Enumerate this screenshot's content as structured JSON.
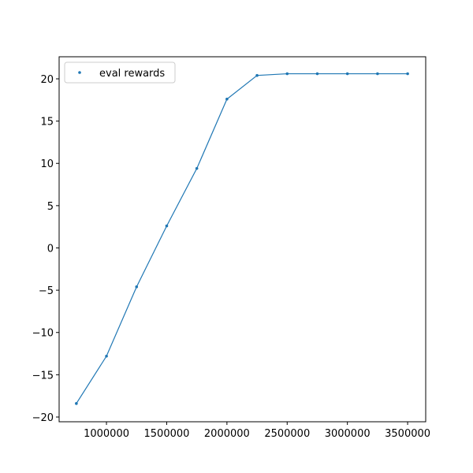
{
  "chart_data": {
    "type": "line",
    "x": [
      750000,
      1000000,
      1250000,
      1500000,
      1750000,
      2000000,
      2250000,
      2500000,
      2750000,
      3000000,
      3250000,
      3500000
    ],
    "series": [
      {
        "name": "eval rewards",
        "color": "#1f77b4",
        "values": [
          -18.4,
          -12.8,
          -4.6,
          2.6,
          9.4,
          17.6,
          20.4,
          20.6,
          20.6,
          20.6,
          20.6,
          20.6
        ]
      }
    ],
    "xlim": [
      607000,
      3650000
    ],
    "xticks": [
      1000000,
      1500000,
      2000000,
      2500000,
      3000000,
      3500000
    ],
    "ylim": [
      -20.56,
      22.61
    ],
    "yticks": [
      {
        "value": -20,
        "label": "−20"
      },
      {
        "value": -15,
        "label": "−15"
      },
      {
        "value": -10,
        "label": "−10"
      },
      {
        "value": -5,
        "label": "−5"
      },
      0,
      5,
      10,
      15,
      20
    ],
    "legend": "upper left"
  }
}
